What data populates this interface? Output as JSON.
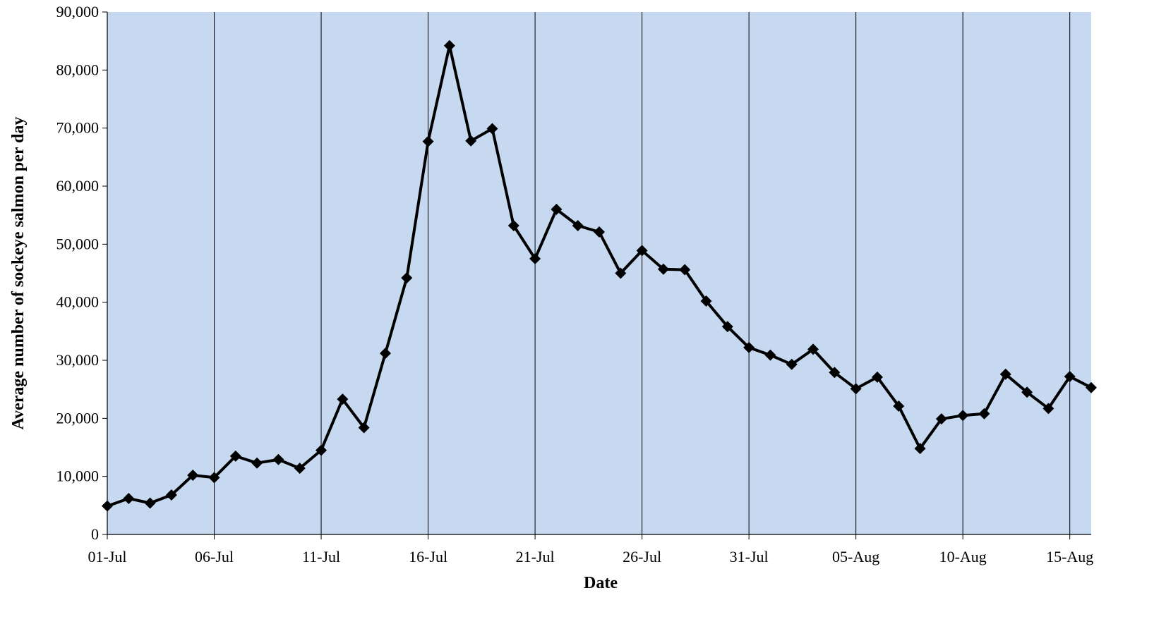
{
  "chart_data": {
    "type": "line",
    "title": "",
    "xlabel": "Date",
    "ylabel": "Average number of sockeye salmon per day",
    "ylim": [
      0,
      90000
    ],
    "y_ticks": [
      0,
      10000,
      20000,
      30000,
      40000,
      50000,
      60000,
      70000,
      80000,
      90000
    ],
    "y_tick_labels": [
      "0",
      "10,000",
      "20,000",
      "30,000",
      "40,000",
      "50,000",
      "60,000",
      "70,000",
      "80,000",
      "90,000"
    ],
    "x_tick_labels": [
      "01-Jul",
      "06-Jul",
      "11-Jul",
      "16-Jul",
      "21-Jul",
      "26-Jul",
      "31-Jul",
      "05-Aug",
      "10-Aug",
      "15-Aug"
    ],
    "x_range": [
      "01-Jul",
      "16-Aug"
    ],
    "grid": "vertical lines at each x tick",
    "legend": "none",
    "marker": "diamond",
    "colors": {
      "plot_background": "#c6d9f1",
      "line": "#000000",
      "grid": "#000000"
    },
    "series": [
      {
        "x": [
          "01-Jul",
          "02-Jul",
          "03-Jul",
          "04-Jul",
          "05-Jul",
          "06-Jul",
          "07-Jul",
          "08-Jul",
          "09-Jul",
          "10-Jul",
          "11-Jul",
          "12-Jul",
          "13-Jul",
          "14-Jul",
          "15-Jul",
          "16-Jul",
          "17-Jul",
          "18-Jul",
          "19-Jul",
          "20-Jul",
          "21-Jul",
          "22-Jul",
          "23-Jul",
          "24-Jul",
          "25-Jul",
          "26-Jul",
          "27-Jul",
          "28-Jul",
          "29-Jul",
          "30-Jul",
          "31-Jul",
          "01-Aug",
          "02-Aug",
          "03-Aug",
          "04-Aug",
          "05-Aug",
          "06-Aug",
          "07-Aug",
          "08-Aug",
          "09-Aug",
          "10-Aug",
          "11-Aug",
          "12-Aug",
          "13-Aug",
          "14-Aug",
          "15-Aug",
          "16-Aug"
        ],
        "values": [
          4900,
          6200,
          5400,
          6800,
          10200,
          9800,
          13500,
          12300,
          12900,
          11400,
          14500,
          23300,
          18400,
          31200,
          44200,
          67700,
          84200,
          67800,
          69900,
          53200,
          47500,
          56000,
          53200,
          52100,
          45000,
          48900,
          45700,
          45600,
          40200,
          35800,
          32200,
          30900,
          29300,
          31900,
          27900,
          25100,
          27100,
          22100,
          14800,
          19900,
          20500,
          20800,
          27600,
          24500,
          21700,
          27200,
          25300
        ]
      }
    ]
  }
}
